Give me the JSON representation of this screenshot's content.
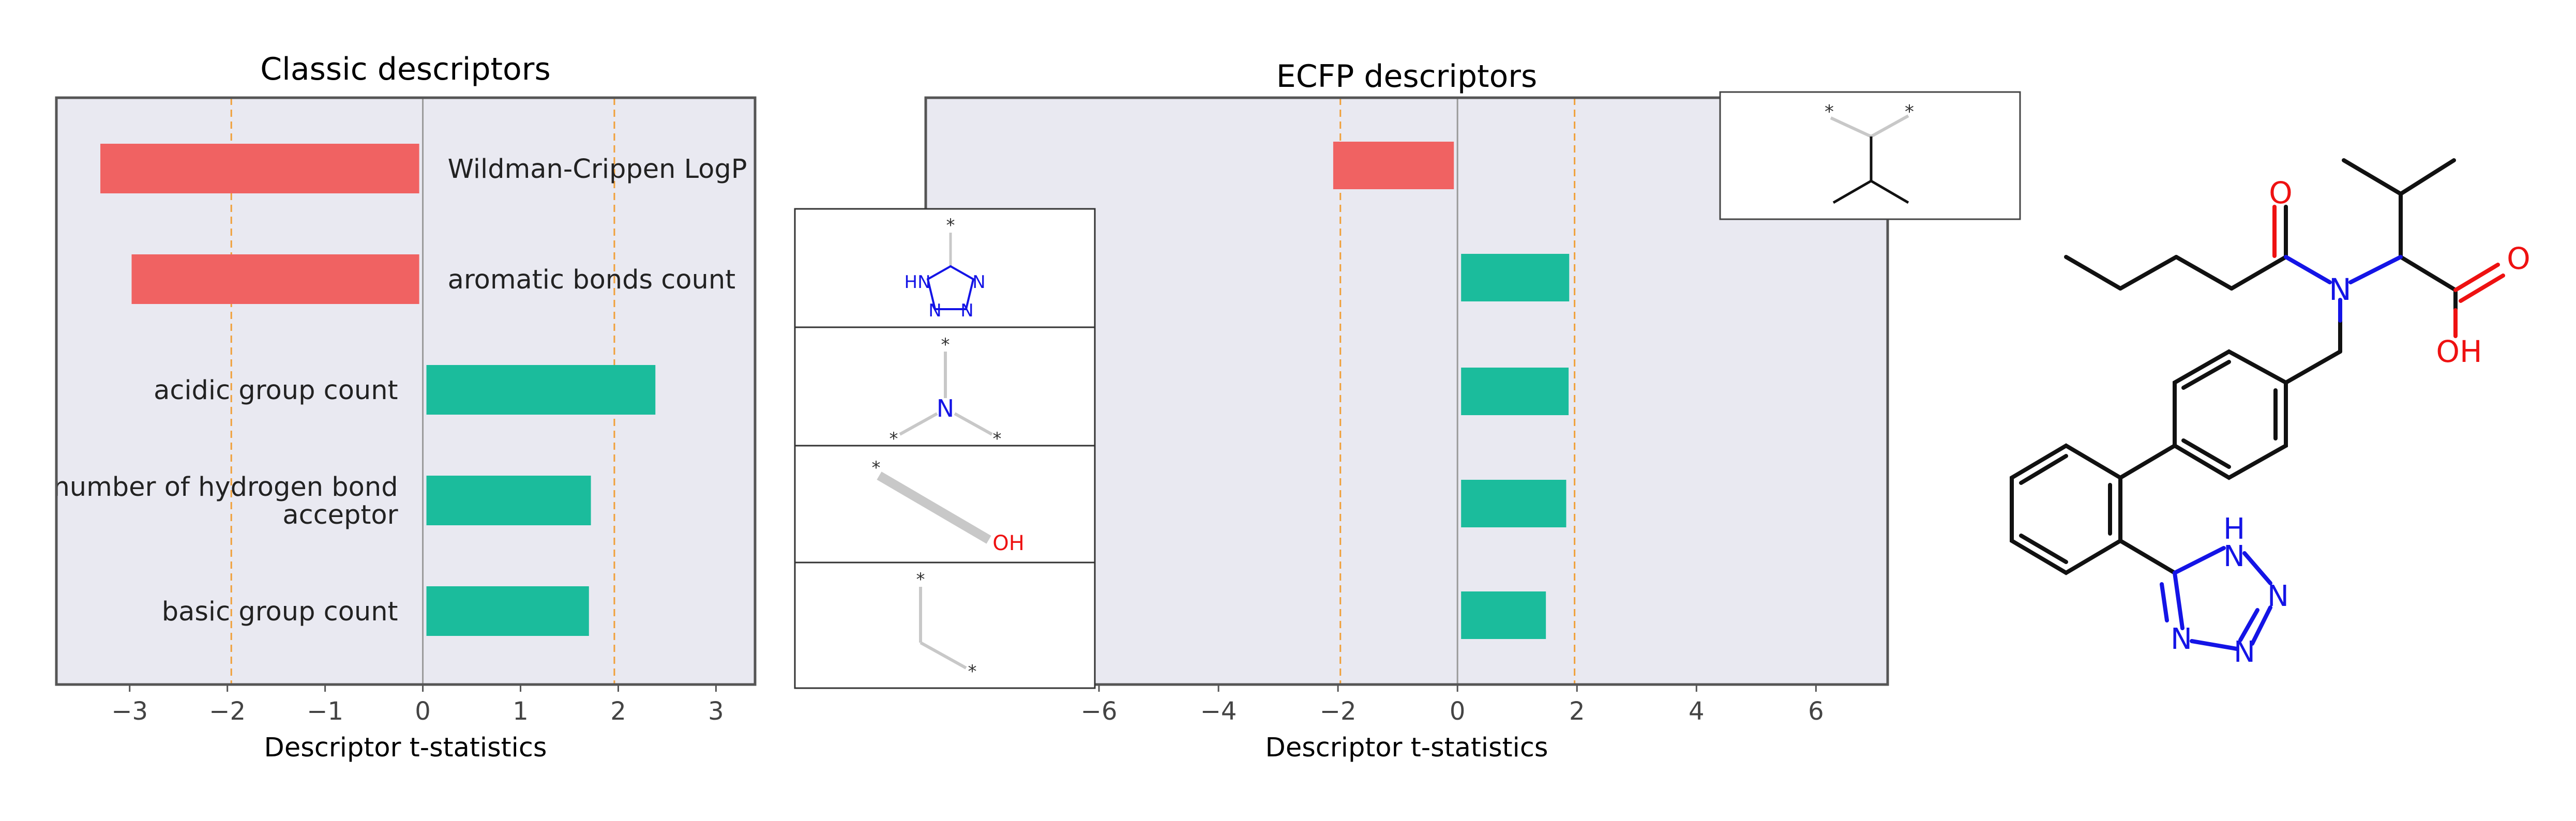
{
  "colors": {
    "negative": "#f06262",
    "positive": "#1bbc9c",
    "panel_bg": "#e9e9f1",
    "threshold_line": "#f0a03a",
    "frame": "#555555",
    "text": "#222222",
    "nitrogen": "#1414e6",
    "oxygen": "#ee1111"
  },
  "chart_data": [
    {
      "type": "bar",
      "orientation": "horizontal",
      "title": "Classic descriptors",
      "xlabel": "Descriptor t-statistics",
      "xlim": [
        -3.75,
        3.4
      ],
      "xticks": [
        -3,
        -2,
        -1,
        0,
        1,
        2,
        3
      ],
      "xtick_labels": [
        "−3",
        "−2",
        "−1",
        "0",
        "1",
        "2",
        "3"
      ],
      "threshold_lines": [
        -1.96,
        1.96
      ],
      "categories": [
        "Wildman-Crippen LogP",
        "aromatic bonds count",
        "acidic group count",
        "number of hydrogen bond acceptor",
        "basic group count"
      ],
      "category_label_lines": [
        [
          "Wildman-Crippen LogP"
        ],
        [
          "aromatic bonds count"
        ],
        [
          "acidic group count"
        ],
        [
          "number of hydrogen bond",
          "acceptor"
        ],
        [
          "basic group count"
        ]
      ],
      "values": [
        -3.3,
        -2.98,
        2.38,
        1.72,
        1.7
      ]
    },
    {
      "type": "bar",
      "orientation": "horizontal",
      "title": "ECFP descriptors",
      "xlabel": "Descriptor t-statistics",
      "xlim": [
        -8.9,
        7.2
      ],
      "xticks": [
        -6,
        -4,
        -2,
        0,
        2,
        4,
        6
      ],
      "xtick_labels": [
        "−6",
        "−4",
        "−2",
        "0",
        "2",
        "4",
        "6"
      ],
      "threshold_lines": [
        -1.96,
        1.96
      ],
      "categories": [
        "isopropyl branch fragment",
        "tetrazole fragment",
        "tertiary amine fragment",
        "hydroxyl fragment",
        "methylene chain fragment"
      ],
      "values": [
        -2.08,
        1.87,
        1.86,
        1.82,
        1.48
      ]
    }
  ],
  "atoms": {
    "carbonyl_oxygen": "O",
    "acid_oxygen": "O",
    "hydroxyl": "OH",
    "amide_nitrogen": "N",
    "tetrazole_nh": "H",
    "tetrazole_n": "N",
    "fragment_hn": "HN",
    "fragment_n": "N",
    "attachment_point": "*"
  }
}
